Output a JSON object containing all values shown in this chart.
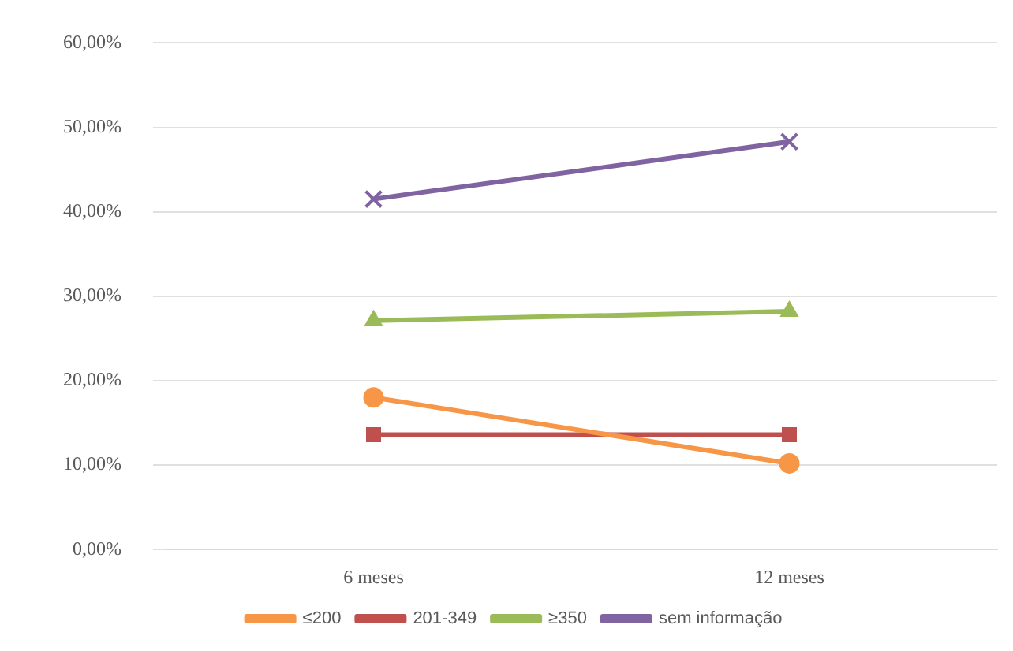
{
  "chart_data": {
    "type": "line",
    "categories": [
      "6 meses",
      "12 meses"
    ],
    "series": [
      {
        "name": "≤200",
        "color": "#f79646",
        "values": [
          18.0,
          10.2
        ],
        "marker": "circle"
      },
      {
        "name": "201-349",
        "color": "#c0504d",
        "values": [
          13.6,
          13.6
        ],
        "marker": "square"
      },
      {
        "name": "≥350",
        "color": "#9bbb59",
        "values": [
          27.1,
          28.2
        ],
        "marker": "triangle"
      },
      {
        "name": "sem informação",
        "color": "#8064a2",
        "values": [
          41.5,
          48.3
        ],
        "marker": "cross"
      }
    ],
    "ylim": [
      0,
      60
    ],
    "yticks": [
      {
        "value": 0,
        "label": "0,00%"
      },
      {
        "value": 10,
        "label": "10,00%"
      },
      {
        "value": 20,
        "label": "20,00%"
      },
      {
        "value": 30,
        "label": "30,00%"
      },
      {
        "value": 40,
        "label": "40,00%"
      },
      {
        "value": 50,
        "label": "50,00%"
      },
      {
        "value": 60,
        "label": "60,00%"
      }
    ],
    "grid": "y",
    "legend": "bottom",
    "line_style": "solid"
  }
}
